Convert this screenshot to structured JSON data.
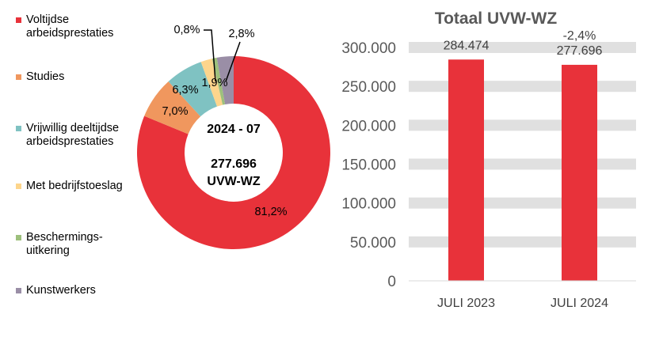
{
  "chart_data": [
    {
      "type": "pie",
      "variant": "donut",
      "center_label": {
        "period": "2024 - 07",
        "total": "277.696",
        "unit": "UVW-WZ"
      },
      "legend_placement": "left",
      "slices": [
        {
          "name": "Voltijdse\narbeidsprestaties",
          "value": 81.2,
          "label": "81,2%",
          "color": "#E8323A"
        },
        {
          "name": "Studies",
          "value": 7.0,
          "label": "7,0%",
          "color": "#F0975E"
        },
        {
          "name": "Vrijwillig deeltijdse\narbeidsprestaties",
          "value": 6.3,
          "label": "6,3%",
          "color": "#7FC2C2"
        },
        {
          "name": "Met bedrijfstoeslag",
          "value": 1.9,
          "label": "1,9%",
          "color": "#FDD58C"
        },
        {
          "name": "Beschermings-\nuitkering",
          "value": 0.8,
          "label": "0,8%",
          "color": "#9DC07C"
        },
        {
          "name": "Kunstwerkers",
          "value": 2.8,
          "label": "2,8%",
          "color": "#9A8EA6"
        }
      ]
    },
    {
      "type": "bar",
      "title": "Totaal UVW-WZ",
      "categories": [
        "JULI 2023",
        "JULI 2024"
      ],
      "values": [
        284474,
        277696
      ],
      "value_labels": [
        "284.474",
        "277.696"
      ],
      "annotation": "-2,4%",
      "ylim": [
        0,
        300000
      ],
      "yticks": [
        0,
        50000,
        100000,
        150000,
        200000,
        250000,
        300000
      ],
      "ytick_labels": [
        "0",
        "50.000",
        "100.000",
        "150.000",
        "200.000",
        "250.000",
        "300.000"
      ],
      "grid": true,
      "bar_color": "#E8323A",
      "grid_color": "#E0E0E0"
    }
  ]
}
